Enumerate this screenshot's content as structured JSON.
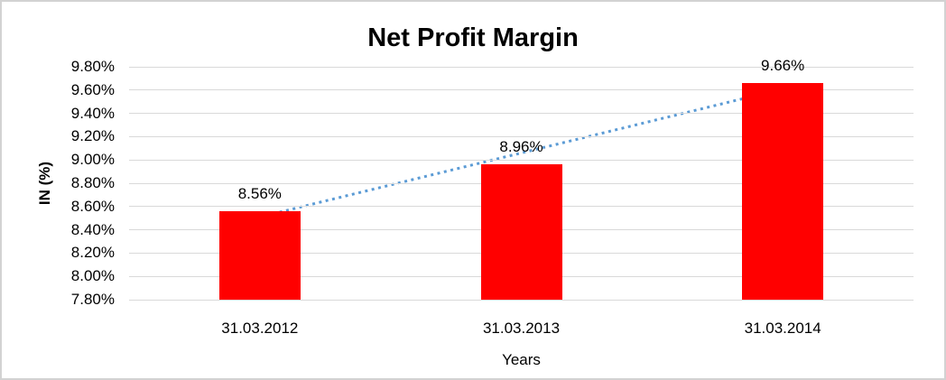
{
  "window": {
    "background": "#FFFFFF",
    "border_color": "#D2D2D2"
  },
  "chart_data": {
    "type": "bar",
    "title": "Net Profit Margin",
    "xlabel": "Years",
    "ylabel": "IN (%)",
    "categories": [
      "31.03.2012",
      "31.03.2013",
      "31.03.2014"
    ],
    "series": [
      {
        "name": "Net Profit Margin",
        "values": [
          8.56,
          8.96,
          9.66
        ]
      }
    ],
    "data_labels": [
      "8.56%",
      "8.96%",
      "9.66%"
    ],
    "ylim": [
      7.8,
      9.8
    ],
    "y_tick_step": 0.2,
    "y_tick_labels": [
      "7.80%",
      "8.00%",
      "8.20%",
      "8.40%",
      "8.60%",
      "8.80%",
      "9.00%",
      "9.20%",
      "9.40%",
      "9.60%",
      "9.80%"
    ],
    "grid": true,
    "legend": false,
    "bar_color": "#FF0000",
    "gridline_color": "#D9D9D9",
    "text_color": "#000000",
    "trendline": {
      "type": "linear",
      "style": "dotted",
      "color": "#5B9BD5",
      "start_value": 8.51,
      "end_value": 9.61
    }
  }
}
